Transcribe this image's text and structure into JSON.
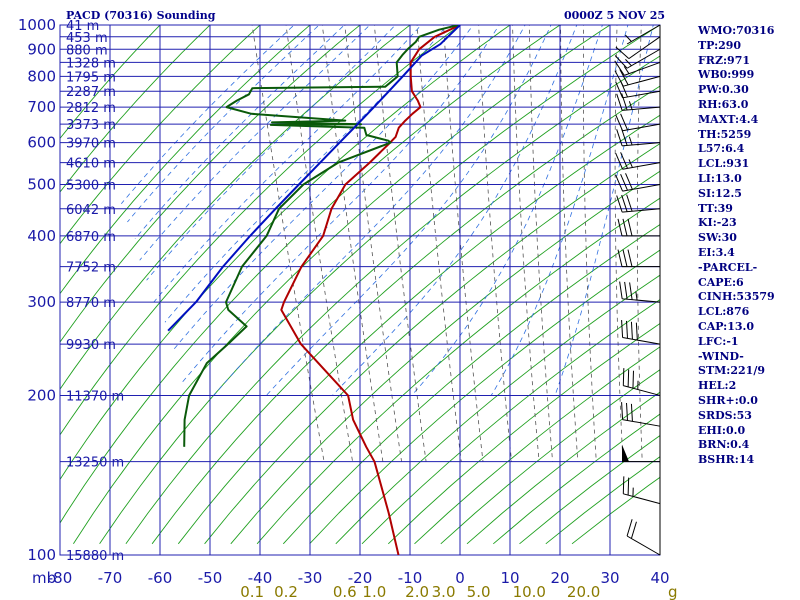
{
  "title": "PACD (70316) Sounding",
  "valid_time": "0000Z  5 NOV 25",
  "units": {
    "pressure": "mb",
    "mixing_ratio": "g"
  },
  "colors": {
    "grid": "#2020b0",
    "dry_adiabat": "#20a020",
    "moist_adiabat": "#3070e0",
    "mixing_ratio": "#555555",
    "temperature": "#b00000",
    "dewpoint": "#0a5a0a",
    "parcel": "#0010c0",
    "wind": "#000000"
  },
  "indices": [
    "WMO:70316",
    "TP:290",
    "FRZ:971",
    "WB0:999",
    "PW:0.30",
    "RH:63.0",
    "MAXT:4.4",
    "TH:5259",
    "L57:6.4",
    "LCL:931",
    "LI:13.0",
    "SI:12.5",
    "TT:39",
    "KI:-23",
    "SW:30",
    "EI:3.4",
    "-PARCEL-",
    "CAPE:6",
    "CINH:53579",
    "LCL:876",
    "CAP:13.0",
    "LFC:-1",
    "-WIND-",
    "STM:221/9",
    "HEL:2",
    "SHR+:0.0",
    "SRDS:53",
    "EHI:0.0",
    "BRN:0.4",
    "BSHR:14"
  ],
  "chart_data": {
    "type": "skew-t",
    "title": "PACD (70316) Sounding",
    "xlabel": "",
    "ylabel": "mb",
    "ylim": [
      1000,
      100
    ],
    "y_scale": "log",
    "xlim": [
      -80,
      40
    ],
    "pressure_ticks": [
      1000,
      900,
      800,
      700,
      600,
      500,
      400,
      300,
      200,
      100
    ],
    "temperature_ticks": [
      -80,
      -70,
      -60,
      -50,
      -40,
      -30,
      -20,
      -10,
      0,
      10,
      20,
      30,
      40
    ],
    "mixing_ratio_ticks": [
      "0.1",
      "0.2",
      "0.6",
      "1.0",
      "2.0",
      "3.0",
      "5.0",
      "10.0",
      "20.0"
    ],
    "height_labels": [
      {
        "p": 1000,
        "label": "41 m"
      },
      {
        "p": 950,
        "label": "453 m"
      },
      {
        "p": 900,
        "label": "880 m"
      },
      {
        "p": 850,
        "label": "1328 m"
      },
      {
        "p": 800,
        "label": "1795 m"
      },
      {
        "p": 750,
        "label": "2287 m"
      },
      {
        "p": 700,
        "label": "2812 m"
      },
      {
        "p": 650,
        "label": "3373 m"
      },
      {
        "p": 600,
        "label": "3970 m"
      },
      {
        "p": 550,
        "label": "4610 m"
      },
      {
        "p": 500,
        "label": "5300 m"
      },
      {
        "p": 450,
        "label": "6042 m"
      },
      {
        "p": 400,
        "label": "6870 m"
      },
      {
        "p": 350,
        "label": "7752 m"
      },
      {
        "p": 300,
        "label": "8770 m"
      },
      {
        "p": 250,
        "label": "9930 m"
      },
      {
        "p": 200,
        "label": "11370 m"
      },
      {
        "p": 150,
        "label": "13250 m"
      },
      {
        "p": 100,
        "label": "15880 m"
      }
    ],
    "series": [
      {
        "type": "temperature",
        "points": [
          [
            1000,
            0.0
          ],
          [
            950,
            -5.9
          ],
          [
            900,
            -9.9
          ],
          [
            850,
            -12.5
          ],
          [
            800,
            -13.5
          ],
          [
            750,
            -14.3
          ],
          [
            720,
            -13.8
          ],
          [
            700,
            -13.7
          ],
          [
            680,
            -15.8
          ],
          [
            660,
            -17.7
          ],
          [
            640,
            -19.5
          ],
          [
            615,
            -20.8
          ],
          [
            600,
            -22.3
          ],
          [
            550,
            -27.8
          ],
          [
            500,
            -34.2
          ],
          [
            450,
            -38.7
          ],
          [
            400,
            -42.3
          ],
          [
            350,
            -48.8
          ],
          [
            300,
            -54.8
          ],
          [
            290,
            -55.9
          ],
          [
            250,
            -54.4
          ],
          [
            200,
            -48.6
          ],
          [
            180,
            -49.3
          ],
          [
            160,
            -48.6
          ],
          [
            150,
            -48.0
          ],
          [
            120,
            -48.8
          ],
          [
            100,
            -49.8
          ]
        ]
      },
      {
        "type": "dewpoint",
        "points": [
          [
            1000,
            -0.3
          ],
          [
            980,
            -4.5
          ],
          [
            950,
            -9.0
          ],
          [
            930,
            -10.0
          ],
          [
            900,
            -12.2
          ],
          [
            880,
            -13.5
          ],
          [
            850,
            -15.3
          ],
          [
            800,
            -16.1
          ],
          [
            765,
            -19.3
          ],
          [
            760,
            -46.0
          ],
          [
            740,
            -47.1
          ],
          [
            720,
            -50.0
          ],
          [
            700,
            -52.5
          ],
          [
            680,
            -48.0
          ],
          [
            660,
            -29.7
          ],
          [
            655,
            -44.5
          ],
          [
            650,
            -26.8
          ],
          [
            648,
            -44.9
          ],
          [
            643,
            -34.1
          ],
          [
            640,
            -26.4
          ],
          [
            620,
            -26.5
          ],
          [
            605,
            -22.5
          ],
          [
            600,
            -22.2
          ],
          [
            550,
            -34.1
          ],
          [
            500,
            -42.6
          ],
          [
            450,
            -49.2
          ],
          [
            400,
            -53.6
          ],
          [
            350,
            -60.7
          ],
          [
            300,
            -66.4
          ],
          [
            290,
            -66.5
          ],
          [
            270,
            -64.0
          ],
          [
            250,
            -69.0
          ],
          [
            230,
            -74.6
          ],
          [
            200,
            -80.4
          ],
          [
            180,
            -83.0
          ],
          [
            160,
            -85.0
          ]
        ]
      },
      {
        "type": "parcel",
        "points": [
          [
            1000,
            0.0
          ],
          [
            920,
            -5.3
          ],
          [
            876,
            -9.8
          ],
          [
            800,
            -15.1
          ],
          [
            750,
            -18.9
          ],
          [
            700,
            -23.0
          ],
          [
            650,
            -27.5
          ],
          [
            600,
            -32.4
          ],
          [
            550,
            -37.7
          ],
          [
            500,
            -43.5
          ],
          [
            450,
            -49.9
          ],
          [
            400,
            -56.9
          ],
          [
            350,
            -64.5
          ],
          [
            300,
            -72.4
          ],
          [
            265,
            -80.0
          ]
        ]
      }
    ],
    "wind_barbs": [
      {
        "p": 1000,
        "dir": 240,
        "spd": 5
      },
      {
        "p": 950,
        "dir": 235,
        "spd": 10
      },
      {
        "p": 900,
        "dir": 240,
        "spd": 15
      },
      {
        "p": 850,
        "dir": 250,
        "spd": 15
      },
      {
        "p": 800,
        "dir": 255,
        "spd": 20
      },
      {
        "p": 750,
        "dir": 260,
        "spd": 20
      },
      {
        "p": 700,
        "dir": 265,
        "spd": 25
      },
      {
        "p": 650,
        "dir": 260,
        "spd": 20
      },
      {
        "p": 600,
        "dir": 265,
        "spd": 25
      },
      {
        "p": 550,
        "dir": 260,
        "spd": 25
      },
      {
        "p": 500,
        "dir": 260,
        "spd": 30
      },
      {
        "p": 450,
        "dir": 265,
        "spd": 30
      },
      {
        "p": 400,
        "dir": 270,
        "spd": 30
      },
      {
        "p": 350,
        "dir": 270,
        "spd": 30
      },
      {
        "p": 300,
        "dir": 275,
        "spd": 35
      },
      {
        "p": 250,
        "dir": 280,
        "spd": 40
      },
      {
        "p": 200,
        "dir": 285,
        "spd": 35
      },
      {
        "p": 175,
        "dir": 280,
        "spd": 30
      },
      {
        "p": 150,
        "dir": 270,
        "spd": 50
      },
      {
        "p": 125,
        "dir": 285,
        "spd": 25
      },
      {
        "p": 100,
        "dir": 300,
        "spd": 20
      }
    ]
  }
}
